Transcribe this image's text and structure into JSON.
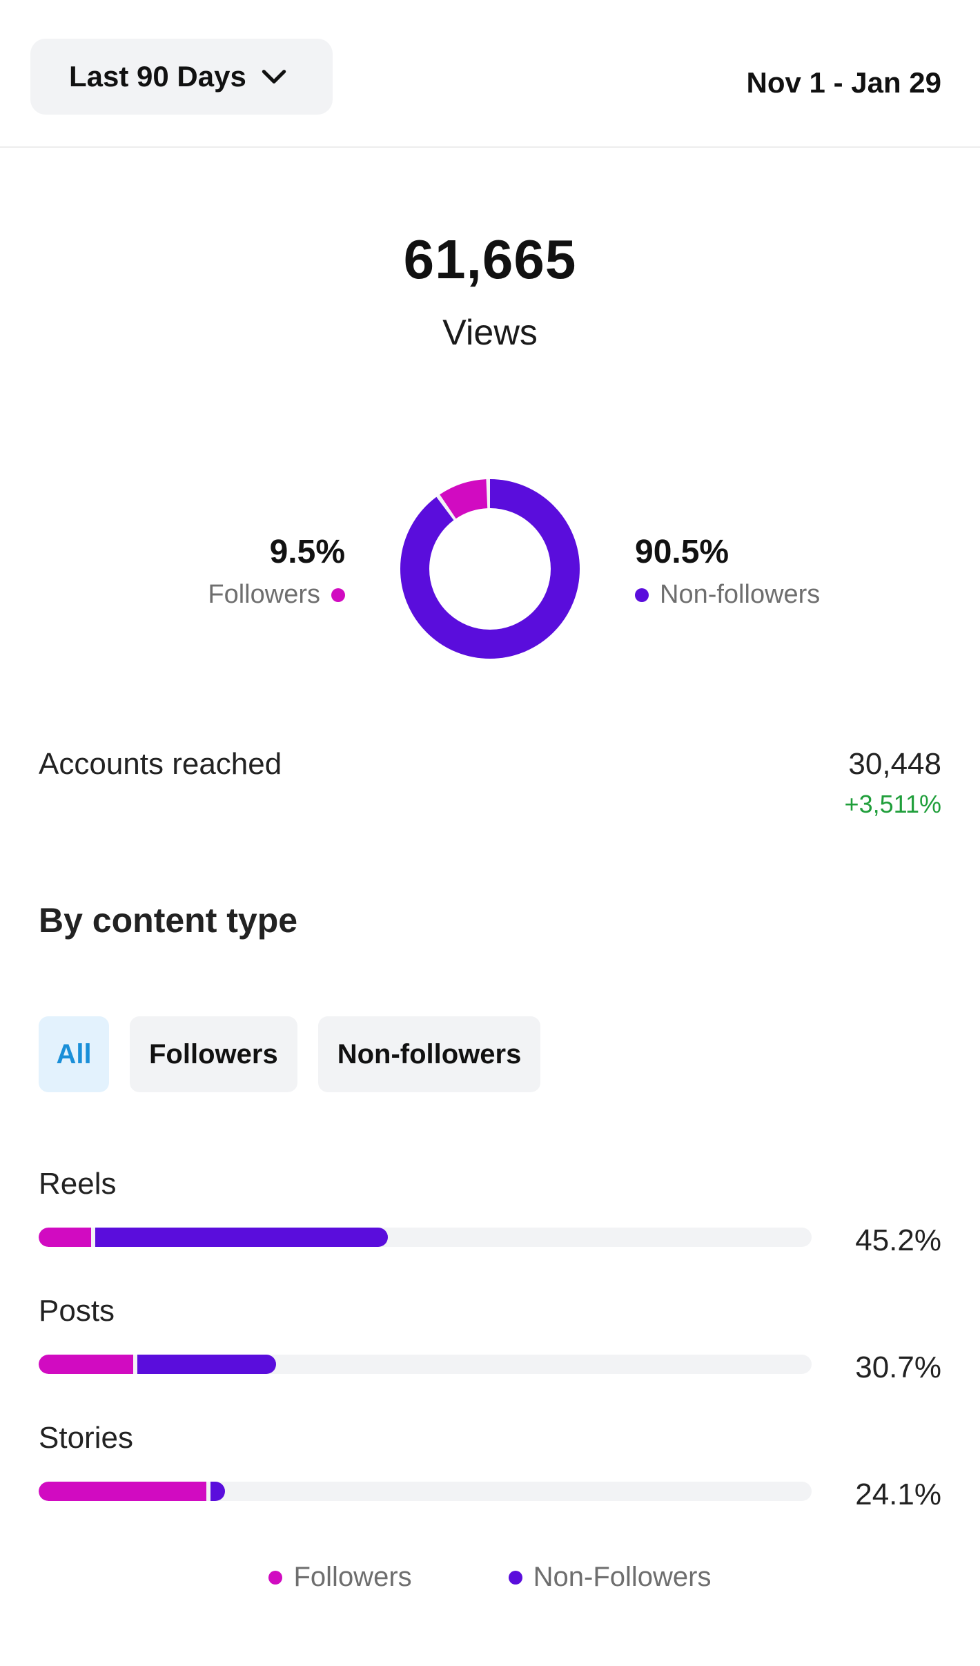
{
  "header": {
    "range_label": "Last 90 Days",
    "date_range": "Nov 1 - Jan 29"
  },
  "views": {
    "count": "61,665",
    "label": "Views"
  },
  "audience_split": {
    "followers": {
      "pct": "9.5%",
      "label": "Followers",
      "value": 9.5
    },
    "non_followers": {
      "pct": "90.5%",
      "label": "Non-followers",
      "value": 90.5
    }
  },
  "accounts_reached": {
    "label": "Accounts reached",
    "value": "30,448",
    "change": "+3,511%"
  },
  "content_type": {
    "title": "By content type",
    "filters": [
      {
        "label": "All",
        "active": true
      },
      {
        "label": "Followers",
        "active": false
      },
      {
        "label": "Non-followers",
        "active": false
      }
    ],
    "rows": [
      {
        "label": "Reels",
        "pct": "45.2%",
        "total": 45.2,
        "followers_part": 6.8,
        "nonfollowers_part": 38.4
      },
      {
        "label": "Posts",
        "pct": "30.7%",
        "total": 30.7,
        "followers_part": 12.2,
        "nonfollowers_part": 18.5
      },
      {
        "label": "Stories",
        "pct": "24.1%",
        "total": 24.1,
        "followers_part": 21.7,
        "nonfollowers_part": 2.4
      }
    ],
    "legend": [
      {
        "label": "Followers"
      },
      {
        "label": "Non-Followers"
      }
    ]
  },
  "colors": {
    "followers": "#d10bc1",
    "non_followers": "#5a0ddc",
    "positive": "#1f9e3a",
    "active_filter_bg": "#e3f2fd",
    "active_filter_text": "#1a8fd8"
  },
  "icons": {
    "range_dropdown": "chevron-down-icon"
  }
}
